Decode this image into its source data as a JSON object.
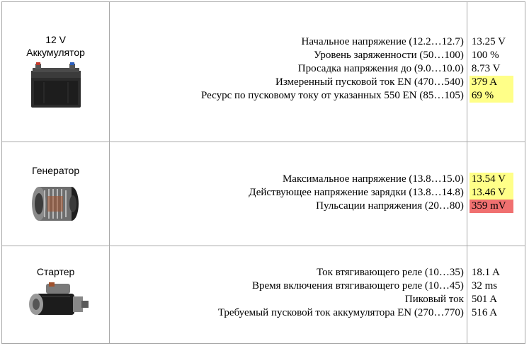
{
  "components": [
    {
      "id": "battery",
      "name_lines": [
        "12 V",
        "Аккумулятор"
      ],
      "icon": "car-battery-icon",
      "params": [
        {
          "label": "Начальное напряжение (12.2…12.7)",
          "value": "13.25 V",
          "status": "none"
        },
        {
          "label": "Уровень заряженности (50…100)",
          "value": "100 %",
          "status": "none"
        },
        {
          "label": "Просадка напряжения до (9.0…10.0)",
          "value": "8.73 V",
          "status": "none"
        },
        {
          "label": "Измеренный пусковой ток EN (470…540)",
          "value": "379 A",
          "status": "warning"
        },
        {
          "label": "Ресурс по пусковому току от указанных 550 EN (85…105)",
          "value": "69 %",
          "status": "warning"
        }
      ]
    },
    {
      "id": "alternator",
      "name_lines": [
        "Генератор"
      ],
      "icon": "alternator-icon",
      "params": [
        {
          "label": "Максимальное напряжение (13.8…15.0)",
          "value": "13.54 V",
          "status": "warning"
        },
        {
          "label": "Действующее напряжение зарядки (13.8…14.8)",
          "value": "13.46 V",
          "status": "warning"
        },
        {
          "label": "Пульсации напряжения (20…80)",
          "value": "359 mV",
          "status": "error"
        }
      ]
    },
    {
      "id": "starter",
      "name_lines": [
        "Стартер"
      ],
      "icon": "starter-motor-icon",
      "params": [
        {
          "label": "Ток втягивающего реле (10…35)",
          "value": "18.1 A",
          "status": "none"
        },
        {
          "label": "Время включения втягивающего реле (10…45)",
          "value": "32 ms",
          "status": "none"
        },
        {
          "label": "Пиковый ток",
          "value": "501 A",
          "status": "none"
        },
        {
          "label": "Требуемый пусковой ток аккумулятора EN (270…770)",
          "value": "516 A",
          "status": "none"
        }
      ]
    }
  ],
  "colors": {
    "warning": "#ffff88",
    "error": "#f07070",
    "border": "#a9a9a9"
  }
}
